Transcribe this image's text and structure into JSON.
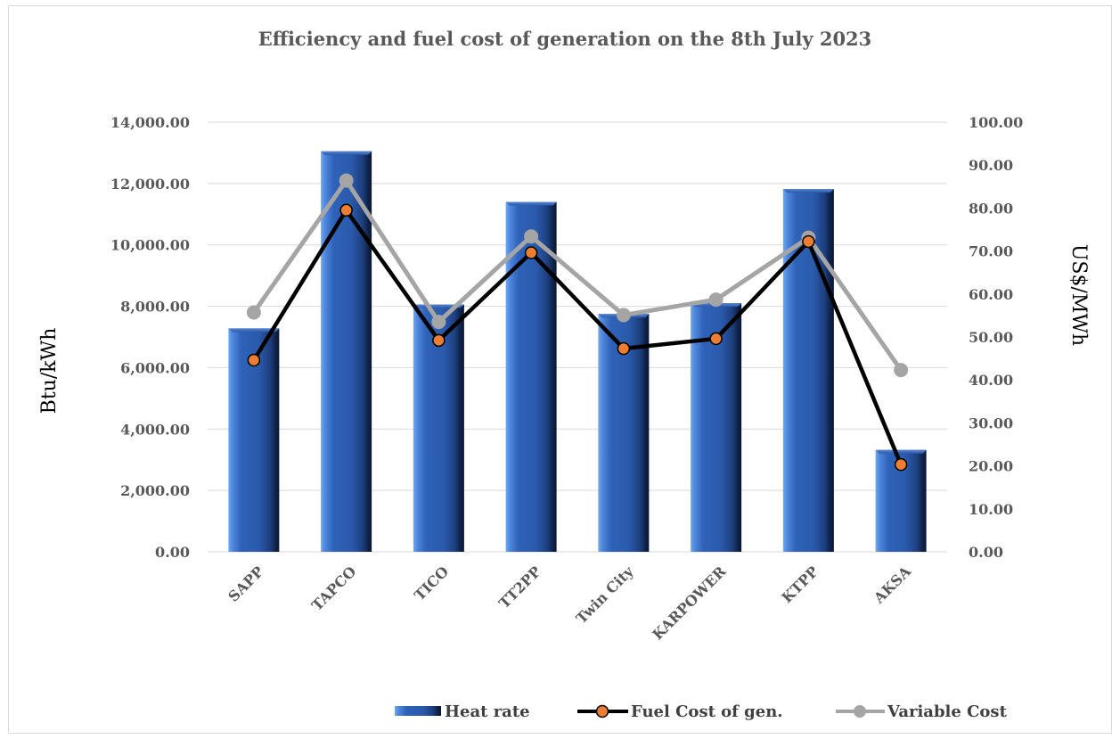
{
  "chart_data": {
    "type": "bar",
    "title": "Efficiency and fuel cost of generation on the 8th July 2023",
    "categories": [
      "SAPP",
      "TAPCO",
      "TICO",
      "TT2PP",
      "Twin City",
      "KARPOWER",
      "KTPP",
      "AKSA"
    ],
    "y_left": {
      "label": "Btu/kWh",
      "lim": [
        0,
        14000
      ],
      "ticks": [
        "0.00",
        "2,000.00",
        "4,000.00",
        "6,000.00",
        "8,000.00",
        "10,000.00",
        "12,000.00",
        "14,000.00"
      ]
    },
    "y_right": {
      "label": "US$/MWh",
      "lim": [
        0,
        100
      ],
      "ticks": [
        "0.00",
        "10.00",
        "20.00",
        "30.00",
        "40.00",
        "50.00",
        "60.00",
        "70.00",
        "80.00",
        "90.00",
        "100.00"
      ]
    },
    "grid": true,
    "legend_position": "bottom",
    "series": [
      {
        "name": "Heat rate",
        "type": "bar",
        "axis": "left",
        "color": "#2f5597",
        "values": [
          7280,
          13050,
          8060,
          11400,
          7750,
          8100,
          11820,
          3320
        ]
      },
      {
        "name": "Fuel Cost of gen.",
        "type": "line",
        "axis": "right",
        "color": "#000000",
        "marker_color": "#ed7d31",
        "values": [
          44.6,
          79.5,
          49.2,
          69.6,
          47.3,
          49.6,
          72.2,
          20.3
        ]
      },
      {
        "name": "Variable Cost",
        "type": "line",
        "axis": "right",
        "color": "#a5a5a5",
        "marker_color": "#a5a5a5",
        "values": [
          55.7,
          86.4,
          53.5,
          73.4,
          55.1,
          58.7,
          73.1,
          42.3
        ]
      }
    ]
  }
}
